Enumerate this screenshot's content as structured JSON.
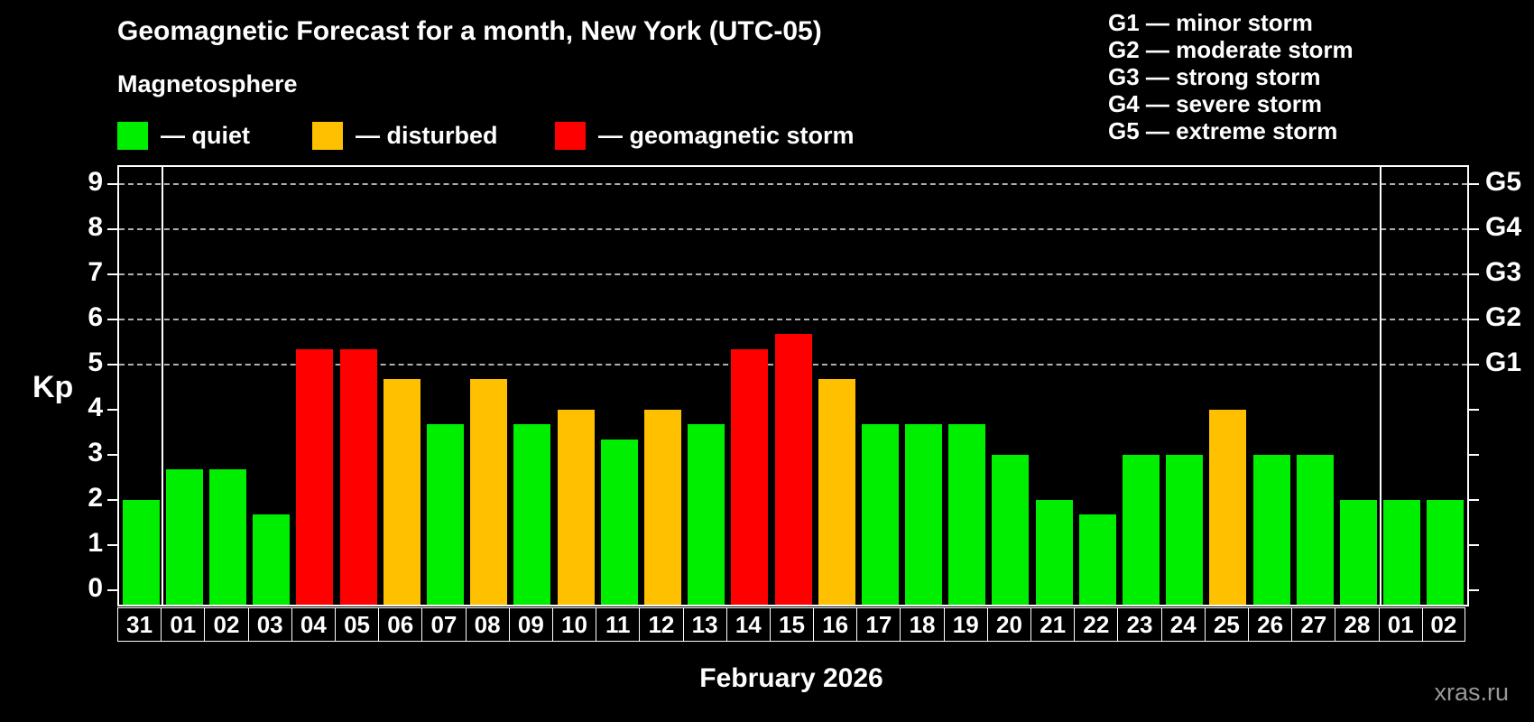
{
  "title": "Geomagnetic Forecast for a month, New York (UTC-05)",
  "subtitle": "Magnetosphere",
  "status_legend": [
    {
      "key": "quiet",
      "label": "— quiet"
    },
    {
      "key": "disturbed",
      "label": "— disturbed"
    },
    {
      "key": "storm",
      "label": "— geomagnetic storm"
    }
  ],
  "g_legend": [
    "G1 — minor storm",
    "G2 — moderate storm",
    "G3 — strong storm",
    "G4 — severe storm",
    "G5 — extreme storm"
  ],
  "watermark": "xras.ru",
  "chart_data": {
    "type": "bar",
    "title": "Geomagnetic Forecast for a month, New York (UTC-05)",
    "ylabel": "Kp",
    "xlabel": "February 2026",
    "categories": [
      "31",
      "01",
      "02",
      "03",
      "04",
      "05",
      "06",
      "07",
      "08",
      "09",
      "10",
      "11",
      "12",
      "13",
      "14",
      "15",
      "16",
      "17",
      "18",
      "19",
      "20",
      "21",
      "22",
      "23",
      "24",
      "25",
      "26",
      "27",
      "28",
      "01",
      "02"
    ],
    "values": [
      2.0,
      2.67,
      2.67,
      1.67,
      5.33,
      5.33,
      4.67,
      3.67,
      4.67,
      3.67,
      4.0,
      3.33,
      4.0,
      3.67,
      5.33,
      5.67,
      4.67,
      3.67,
      3.67,
      3.67,
      3.0,
      2.0,
      1.67,
      3.0,
      3.0,
      4.0,
      3.0,
      3.0,
      2.0,
      2.0,
      2.0
    ],
    "status": [
      "quiet",
      "quiet",
      "quiet",
      "quiet",
      "storm",
      "storm",
      "disturbed",
      "quiet",
      "disturbed",
      "quiet",
      "disturbed",
      "quiet",
      "disturbed",
      "quiet",
      "storm",
      "storm",
      "disturbed",
      "quiet",
      "quiet",
      "quiet",
      "quiet",
      "quiet",
      "quiet",
      "quiet",
      "quiet",
      "disturbed",
      "quiet",
      "quiet",
      "quiet",
      "quiet",
      "quiet"
    ],
    "colors": {
      "quiet": "#00ee00",
      "disturbed": "#ffc000",
      "storm": "#ff0000"
    },
    "y_ticks": [
      0,
      1,
      2,
      3,
      4,
      5,
      6,
      7,
      8,
      9
    ],
    "ylim": [
      -0.33,
      9.33
    ],
    "gridlines_at_kp": [
      5,
      6,
      7,
      8,
      9
    ],
    "right_axis_labels": [
      {
        "kp": 5,
        "label": "G1"
      },
      {
        "kp": 6,
        "label": "G2"
      },
      {
        "kp": 7,
        "label": "G3"
      },
      {
        "kp": 8,
        "label": "G4"
      },
      {
        "kp": 9,
        "label": "G5"
      }
    ],
    "month_separators_after_index": [
      0,
      28
    ],
    "grid": "horizontal dashed lines at G1–G5 levels",
    "legend_position": "top-left"
  }
}
